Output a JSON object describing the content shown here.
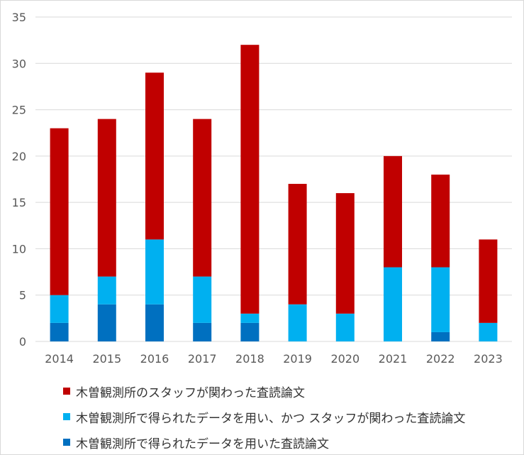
{
  "chart_data": {
    "type": "bar",
    "stacked": true,
    "categories": [
      "2014",
      "2015",
      "2016",
      "2017",
      "2018",
      "2019",
      "2020",
      "2021",
      "2022",
      "2023"
    ],
    "ylim": [
      0,
      35
    ],
    "yticks": [
      "0",
      "5",
      "10",
      "15",
      "20",
      "25",
      "30",
      "35"
    ],
    "grid": true,
    "legend_position": "bottom",
    "series": [
      {
        "name": "木曽観測所で得られたデータを用いた査読論文",
        "color": "#0070c0",
        "values": [
          2,
          4,
          4,
          2,
          2,
          0,
          0,
          0,
          1,
          0
        ]
      },
      {
        "name": "木曽観測所で得られたデータを用い、かつ スタッフが関わった査読論文",
        "color": "#00b0f0",
        "values": [
          3,
          3,
          7,
          5,
          1,
          4,
          3,
          8,
          7,
          2
        ]
      },
      {
        "name": "木曽観測所のスタッフが関わった査読論文",
        "color": "#c00000",
        "values": [
          18,
          17,
          18,
          17,
          29,
          13,
          13,
          12,
          10,
          9
        ]
      }
    ]
  }
}
